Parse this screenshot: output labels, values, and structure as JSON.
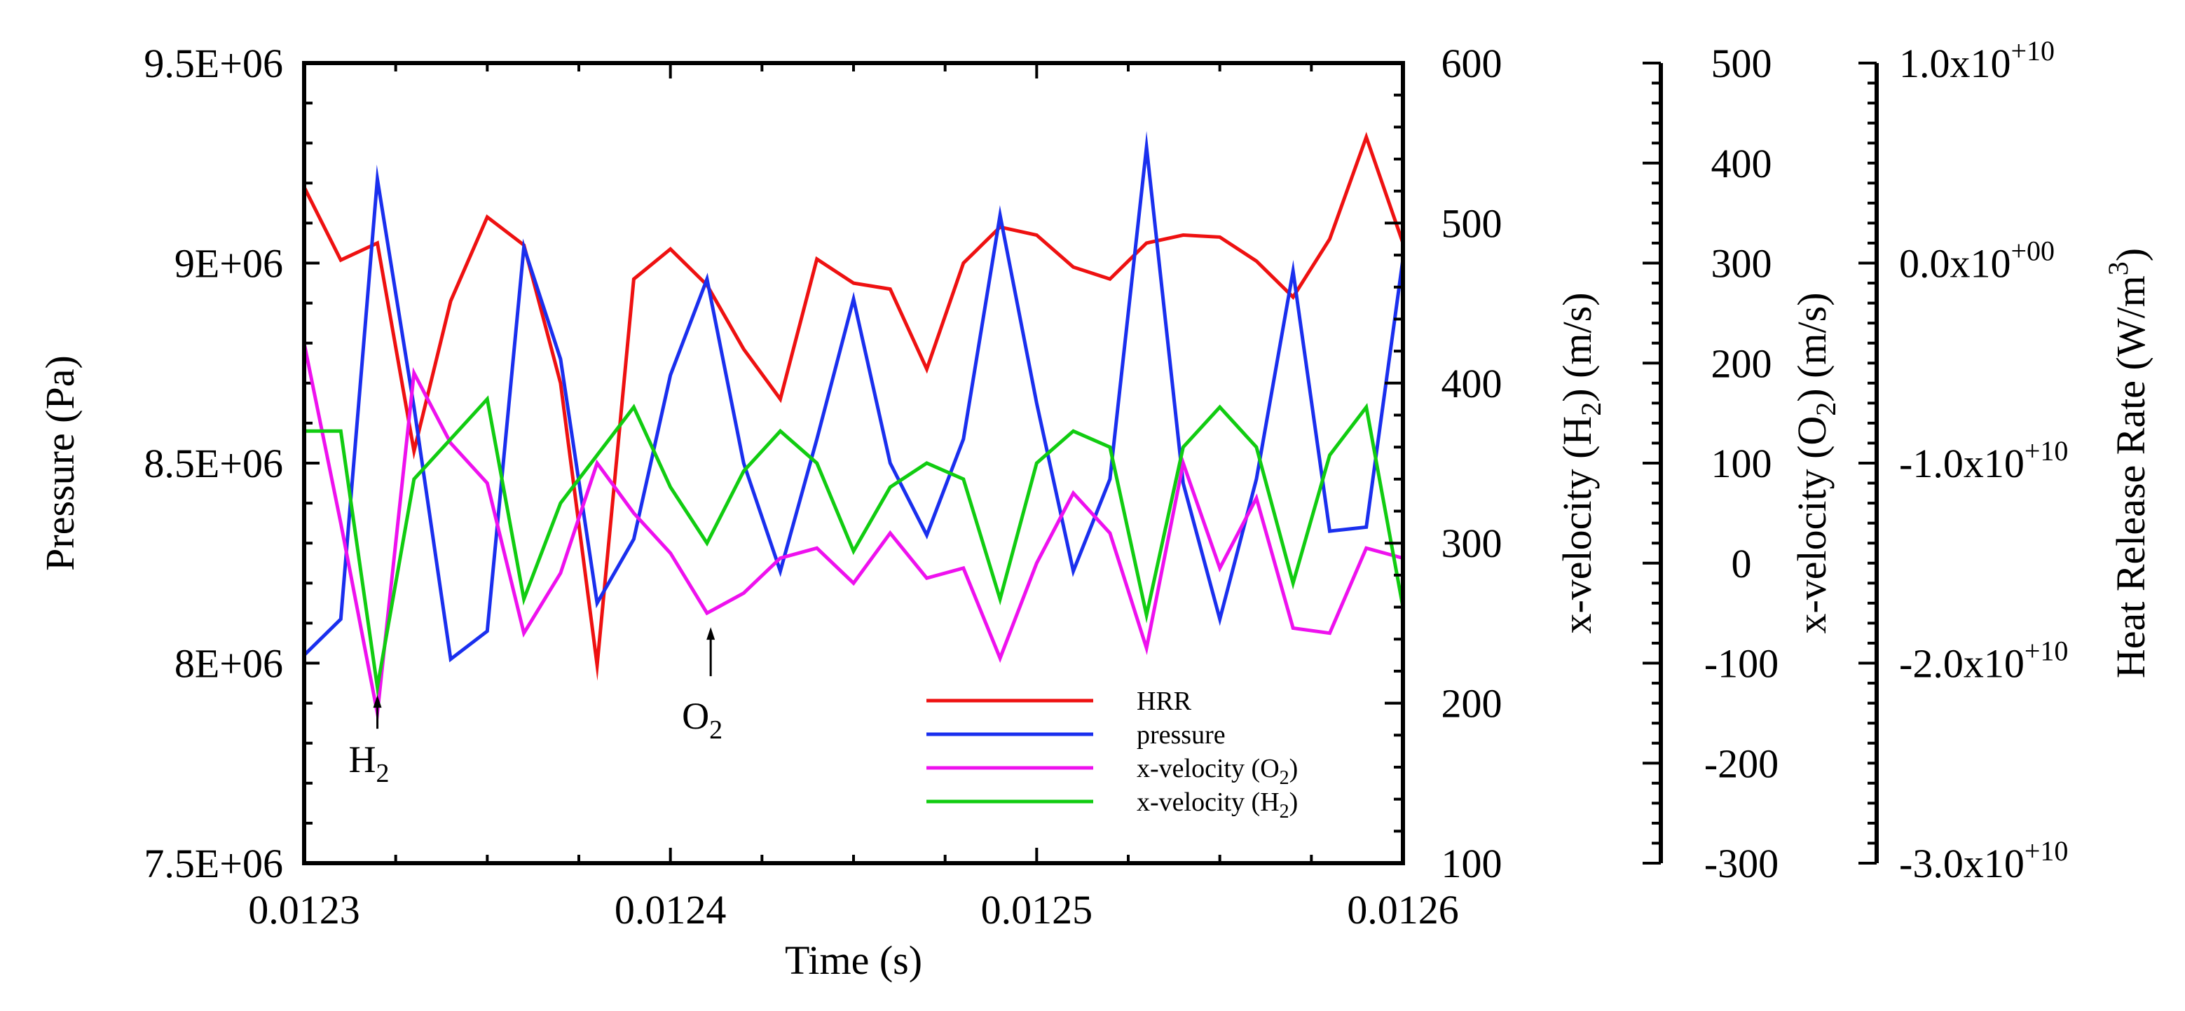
{
  "chart_data": {
    "type": "line",
    "xlabel": "Time (s)",
    "xlim": [
      0.0123,
      0.0126
    ],
    "xticks": [
      "0.0123",
      "0.0124",
      "0.0125",
      "0.0126"
    ],
    "axes": [
      {
        "id": "pressure",
        "label": "Pressure (Pa)",
        "range": [
          7500000,
          9500000
        ],
        "tick_labels": [
          "7.5E+06",
          "8E+06",
          "8.5E+06",
          "9E+06",
          "9.5E+06"
        ]
      },
      {
        "id": "vel_h2",
        "label_prefix": "x-velocity (H",
        "label_sub": "2",
        "label_suffix": ") (m/s)",
        "range": [
          100,
          600
        ],
        "tick_labels": [
          "100",
          "200",
          "300",
          "400",
          "500",
          "600"
        ]
      },
      {
        "id": "vel_o2",
        "label_prefix": "x-velocity (O",
        "label_sub": "2",
        "label_suffix": ") (m/s)",
        "range": [
          -300,
          500
        ],
        "tick_labels": [
          "-300",
          "-200",
          "-100",
          "0",
          "100",
          "200",
          "300",
          "400",
          "500"
        ]
      },
      {
        "id": "hrr",
        "label_prefix": "Heat Release Rate (W/m",
        "label_sup": "3",
        "label_suffix": ")",
        "range": [
          -30000000000,
          10000000000
        ],
        "tick_labels": [
          {
            "base": "-3.0x10",
            "exp": "+10"
          },
          {
            "base": "-2.0x10",
            "exp": "+10"
          },
          {
            "base": "-1.0x10",
            "exp": "+10"
          },
          {
            "base": "0.0x10",
            "exp": "+00"
          },
          {
            "base": "1.0x10",
            "exp": "+10"
          }
        ]
      }
    ],
    "series": [
      {
        "name": "HRR",
        "color": "#ee1111",
        "axis": "hrr",
        "x": [
          0.0123,
          0.01231,
          0.01232,
          0.01233,
          0.01234,
          0.01235,
          0.01236,
          0.01237,
          0.01238,
          0.01239,
          0.0124,
          0.01241,
          0.01242,
          0.01243,
          0.01244,
          0.01245,
          0.01246,
          0.01247,
          0.01248,
          0.01249,
          0.0125,
          0.01251,
          0.01252,
          0.01253,
          0.01254,
          0.01255,
          0.01256,
          0.01257,
          0.01258,
          0.01259,
          0.0126
        ],
        "y": [
          3800000000.0,
          150000000.0,
          1000000000.0,
          -9400000000.0,
          -1900000000.0,
          2300000000.0,
          900000000.0,
          -6000000000.0,
          -20100000000.0,
          -800000000.0,
          700000000.0,
          -1100000000.0,
          -4300000000.0,
          -6800000000.0,
          200000000.0,
          -1000000000.0,
          -1300000000.0,
          -5300000000.0,
          0.0,
          1800000000.0,
          1400000000.0,
          -200000000.0,
          -800000000.0,
          1000000000.0,
          1400000000.0,
          1300000000.0,
          100000000.0,
          -1700000000.0,
          1200000000.0,
          6300000000.0,
          1000000000.0
        ]
      },
      {
        "name": "pressure",
        "color": "#1a2fee",
        "axis": "pressure",
        "x": [
          0.0123,
          0.01231,
          0.01232,
          0.01233,
          0.01234,
          0.01235,
          0.01236,
          0.01237,
          0.01238,
          0.01239,
          0.0124,
          0.01241,
          0.01242,
          0.01243,
          0.01244,
          0.01245,
          0.01246,
          0.01247,
          0.01248,
          0.01249,
          0.0125,
          0.01251,
          0.01252,
          0.01253,
          0.01254,
          0.01255,
          0.01256,
          0.01257,
          0.01258,
          0.01259,
          0.0126
        ],
        "y": [
          8020000,
          8110000,
          9210000,
          8640000,
          8010000,
          8080000,
          9040000,
          8760000,
          8150000,
          8310000,
          8720000,
          8960000,
          8500000,
          8230000,
          8560000,
          8910000,
          8500000,
          8320000,
          8560000,
          9120000,
          8650000,
          8230000,
          8460000,
          9290000,
          8450000,
          8110000,
          8460000,
          8980000,
          8330000,
          8340000,
          9010000
        ]
      },
      {
        "name": "x-velocity (O2)",
        "label_prefix": "x-velocity (O",
        "label_sub": "2",
        "label_suffix": ")",
        "color": "#ee11ee",
        "axis": "vel_o2",
        "x": [
          0.0123,
          0.01231,
          0.01232,
          0.01233,
          0.01234,
          0.01235,
          0.01236,
          0.01237,
          0.01238,
          0.01239,
          0.0124,
          0.01241,
          0.01242,
          0.01243,
          0.01244,
          0.01245,
          0.01246,
          0.01247,
          0.01248,
          0.01249,
          0.0125,
          0.01251,
          0.01252,
          0.01253,
          0.01254,
          0.01255,
          0.01256,
          0.01257,
          0.01258,
          0.01259,
          0.0126
        ],
        "y": [
          220,
          40,
          -150,
          190,
          120,
          80,
          -70,
          -10,
          100,
          50,
          10,
          -50,
          -30,
          5,
          15,
          -20,
          30,
          -15,
          -5,
          -95,
          0,
          70,
          30,
          -85,
          100,
          -5,
          65,
          -65,
          -70,
          15,
          5
        ]
      },
      {
        "name": "x-velocity (H2)",
        "label_prefix": "x-velocity (H",
        "label_sub": "2",
        "label_suffix": ")",
        "color": "#11cc11",
        "axis": "vel_h2",
        "x": [
          0.0123,
          0.01231,
          0.01232,
          0.01233,
          0.01234,
          0.01235,
          0.01236,
          0.01237,
          0.01238,
          0.01239,
          0.0124,
          0.01241,
          0.01242,
          0.01243,
          0.01244,
          0.01245,
          0.01246,
          0.01247,
          0.01248,
          0.01249,
          0.0125,
          0.01251,
          0.01252,
          0.01253,
          0.01254,
          0.01255,
          0.01256,
          0.01257,
          0.01258,
          0.01259,
          0.0126
        ],
        "y": [
          370,
          370,
          210,
          340,
          365,
          390,
          265,
          325,
          355,
          385,
          335,
          300,
          345,
          370,
          350,
          295,
          335,
          350,
          340,
          265,
          350,
          370,
          360,
          255,
          360,
          385,
          360,
          275,
          355,
          385,
          260
        ]
      }
    ],
    "annotations": [
      {
        "label": "H",
        "sub": "2",
        "x": 0.01232,
        "axis": "pressure",
        "y_tip": 7920000
      },
      {
        "label": "O",
        "sub": "2",
        "x": 0.012411,
        "axis": "pressure",
        "y_tip": 8090000
      }
    ],
    "legend": {
      "position": "bottom-right"
    }
  }
}
